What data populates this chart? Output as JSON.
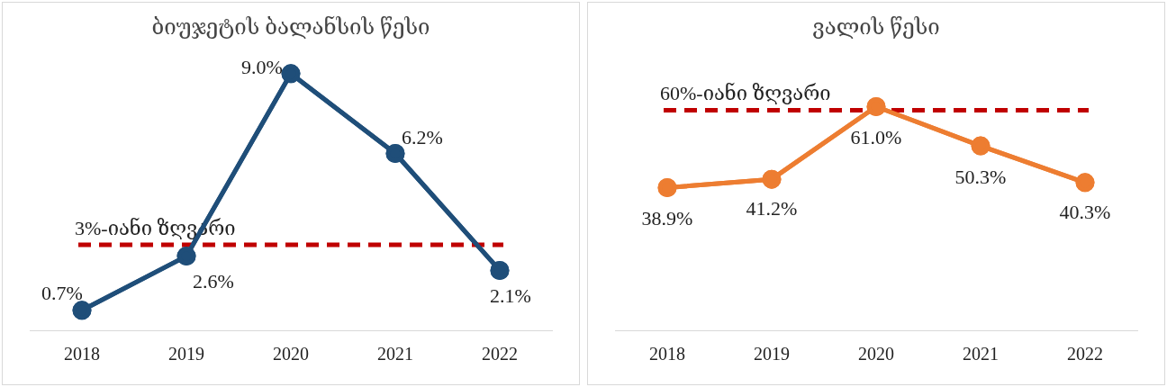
{
  "chart_data": [
    {
      "type": "line",
      "title": "ბიუჯეტის ბალანსის წესი",
      "categories": [
        "2018",
        "2019",
        "2020",
        "2021",
        "2022"
      ],
      "series": [
        {
          "color": "#1f4e79",
          "values": [
            0.7,
            2.6,
            9.0,
            6.2,
            2.1
          ],
          "value_labels": [
            "0.7%",
            "2.6%",
            "9.0%",
            "6.2%",
            "2.1%"
          ]
        }
      ],
      "ref_lines": [
        {
          "axis": "y",
          "value": 3,
          "label": "3%-იანი ზღვარი",
          "color": "#c00000",
          "line_style": "dashed"
        }
      ],
      "grid": false,
      "legend": false,
      "marker": "circle",
      "line_style": "solid",
      "tick_labels": "x"
    },
    {
      "type": "line",
      "title": "ვალის წესი",
      "categories": [
        "2018",
        "2019",
        "2020",
        "2021",
        "2022"
      ],
      "series": [
        {
          "color": "#ed7d31",
          "values": [
            38.9,
            41.2,
            61.0,
            50.3,
            40.3
          ],
          "value_labels": [
            "38.9%",
            "41.2%",
            "61.0%",
            "50.3%",
            "40.3%"
          ]
        }
      ],
      "ref_lines": [
        {
          "axis": "y",
          "value": 60,
          "label": "60%-იანი ზღვარი",
          "color": "#c00000",
          "line_style": "dashed"
        }
      ],
      "grid": false,
      "legend": false,
      "marker": "circle",
      "line_style": "solid",
      "tick_labels": "x"
    }
  ]
}
